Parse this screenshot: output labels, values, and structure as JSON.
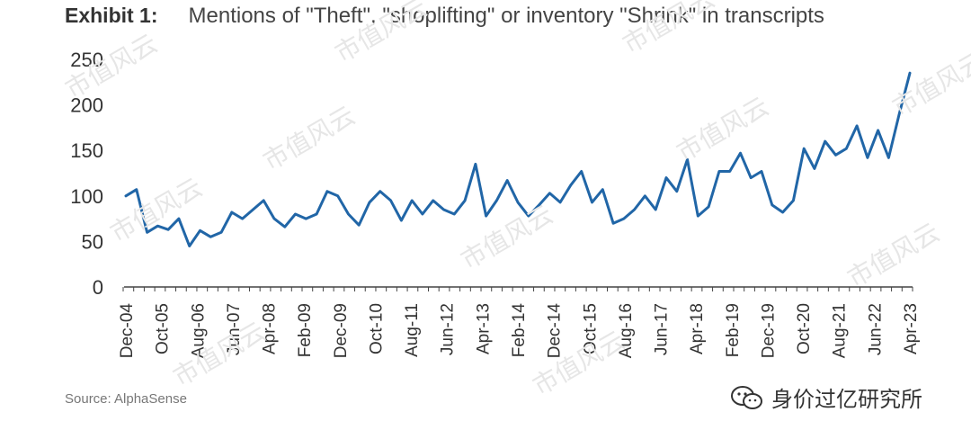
{
  "header": {
    "exhibit_label": "Exhibit 1:",
    "title": "Mentions of \"Theft\", \"shoplifting\" or inventory \"Shrink\" in transcripts"
  },
  "footer": {
    "source": "Source: AlphaSense",
    "brand": "身价过亿研究所",
    "brand_icon": "wechat-icon"
  },
  "watermark_text": "市值风云",
  "colors": {
    "line": "#2166a7",
    "axis": "#444444",
    "text": "#333333"
  },
  "chart_data": {
    "type": "line",
    "title": "Mentions of \"Theft\", \"shoplifting\" or inventory \"Shrink\" in transcripts",
    "xlabel": "",
    "ylabel": "",
    "ylim": [
      0,
      250
    ],
    "yticks": [
      0,
      50,
      100,
      150,
      200,
      250
    ],
    "grid": false,
    "legend": "none",
    "xtick_labels": [
      "Dec-04",
      "Oct-05",
      "Aug-06",
      "Jun-07",
      "Apr-08",
      "Feb-09",
      "Dec-09",
      "Oct-10",
      "Aug-11",
      "Jun-12",
      "Apr-13",
      "Feb-14",
      "Dec-14",
      "Oct-15",
      "Aug-16",
      "Jun-17",
      "Apr-18",
      "Feb-19",
      "Dec-19",
      "Oct-20",
      "Aug-21",
      "Jun-22",
      "Apr-23"
    ],
    "series": [
      {
        "values": [
          100,
          107,
          60,
          67,
          63,
          75,
          45,
          62,
          55,
          60,
          82,
          75,
          85,
          95,
          75,
          66,
          80,
          75,
          80,
          105,
          100,
          80,
          68,
          93,
          105,
          95,
          73,
          95,
          80,
          95,
          85,
          80,
          95,
          135,
          78,
          95,
          117,
          93,
          78,
          90,
          103,
          93,
          112,
          127,
          93,
          107,
          70,
          75,
          85,
          100,
          85,
          120,
          105,
          140,
          78,
          88,
          127,
          127,
          147,
          120,
          127,
          90,
          82,
          95,
          152,
          130,
          160,
          145,
          152,
          177,
          142,
          172,
          142,
          190,
          235
        ]
      }
    ]
  }
}
